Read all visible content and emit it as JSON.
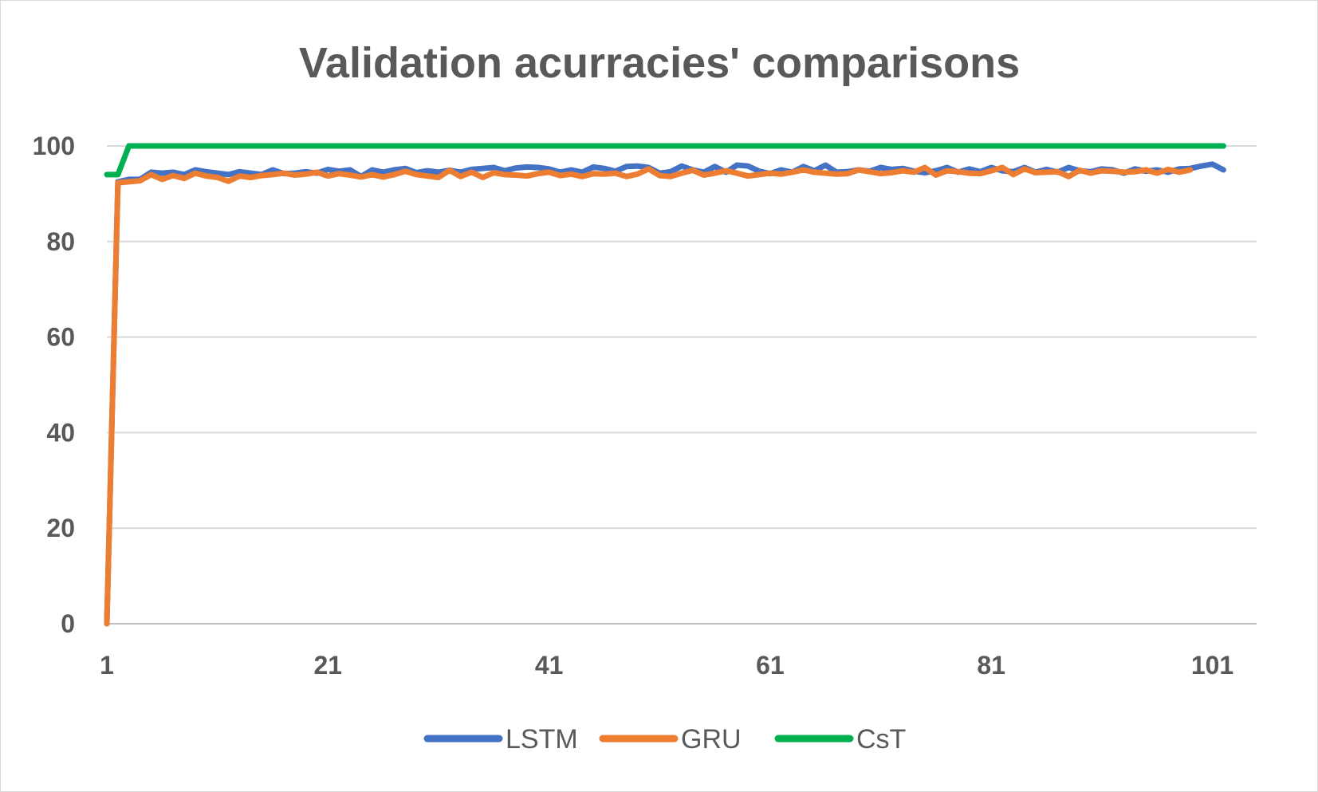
{
  "chart_data": {
    "type": "line",
    "title": "Validation acurracies' comparisons",
    "xlabel": "",
    "ylabel": "",
    "ylim": [
      0,
      100
    ],
    "xlim": [
      1,
      105
    ],
    "yticks": [
      0,
      20,
      40,
      60,
      80,
      100
    ],
    "xticks": [
      1,
      21,
      41,
      61,
      81,
      101
    ],
    "grid": true,
    "legend_position": "bottom",
    "series": [
      {
        "name": "LSTM",
        "color": "#4472c4",
        "values": [
          0,
          92.5,
          93,
          93,
          94.5,
          94.3,
          94.5,
          94,
          95,
          94.6,
          94.3,
          94,
          94.6,
          94.3,
          94,
          95,
          94.2,
          94.3,
          94.6,
          94.3,
          95.1,
          94.7,
          95,
          93.6,
          95,
          94.5,
          95,
          95.3,
          94.4,
          94.8,
          94.5,
          94.9,
          94.5,
          95.1,
          95.3,
          95.5,
          94.8,
          95.4,
          95.6,
          95.5,
          95.2,
          94.5,
          95,
          94.5,
          95.6,
          95.3,
          94.7,
          95.7,
          95.8,
          95.5,
          94.3,
          94.6,
          95.8,
          95,
          94.5,
          95.7,
          94.5,
          96,
          95.8,
          94.7,
          94.2,
          95,
          94.5,
          95.7,
          94.8,
          96,
          94.5,
          94.6,
          95,
          94.7,
          95.5,
          95.1,
          95.3,
          94.7,
          94.4,
          94.8,
          95.5,
          94.5,
          95.2,
          94.6,
          95.5,
          94.8,
          94.6,
          95.5,
          94.5,
          95.1,
          94.5,
          95.5,
          94.8,
          94.6,
          95.2,
          95,
          94.3,
          95.2,
          94.7,
          95,
          94.5,
          95.2,
          95.3,
          95.8,
          96.2,
          95
        ]
      },
      {
        "name": "GRU",
        "color": "#ed7d31",
        "values": [
          0,
          92.3,
          92.5,
          92.7,
          94,
          93,
          93.8,
          93.2,
          94.3,
          93.7,
          93.4,
          92.6,
          93.7,
          93.4,
          93.8,
          94,
          94.3,
          93.9,
          94.1,
          94.5,
          93.7,
          94.2,
          93.9,
          93.5,
          94,
          93.5,
          94,
          94.7,
          94,
          93.7,
          93.4,
          94.9,
          93.6,
          94.5,
          93.4,
          94.4,
          94,
          93.9,
          93.7,
          94.2,
          94.5,
          93.8,
          94.1,
          93.6,
          94.2,
          94.1,
          94.3,
          93.6,
          94.1,
          95.2,
          93.8,
          93.6,
          94.3,
          94.9,
          93.9,
          94.3,
          94.8,
          94.3,
          93.7,
          94,
          94.3,
          94.1,
          94.5,
          95,
          94.5,
          94.3,
          94.1,
          94.2,
          95,
          94.6,
          94.2,
          94.4,
          94.8,
          94.5,
          95.5,
          93.9,
          94.8,
          94.6,
          94.3,
          94.2,
          94.8,
          95.5,
          94,
          95.2,
          94.4,
          94.5,
          94.6,
          93.6,
          94.9,
          94.3,
          94.8,
          94.7,
          94.5,
          94.6,
          95,
          94.3,
          95.1,
          94.5,
          95
        ]
      },
      {
        "name": "CsT",
        "color": "#00b050",
        "values": [
          94,
          94,
          100,
          100,
          100,
          100,
          100,
          100,
          100,
          100,
          100,
          100,
          100,
          100,
          100,
          100,
          100,
          100,
          100,
          100,
          100,
          100,
          100,
          100,
          100,
          100,
          100,
          100,
          100,
          100,
          100,
          100,
          100,
          100,
          100,
          100,
          100,
          100,
          100,
          100,
          100,
          100,
          100,
          100,
          100,
          100,
          100,
          100,
          100,
          100,
          100,
          100,
          100,
          100,
          100,
          100,
          100,
          100,
          100,
          100,
          100,
          100,
          100,
          100,
          100,
          100,
          100,
          100,
          100,
          100,
          100,
          100,
          100,
          100,
          100,
          100,
          100,
          100,
          100,
          100,
          100,
          100,
          100,
          100,
          100,
          100,
          100,
          100,
          100,
          100,
          100,
          100,
          100,
          100,
          100,
          100,
          100,
          100,
          100,
          100,
          100,
          100
        ]
      }
    ]
  }
}
